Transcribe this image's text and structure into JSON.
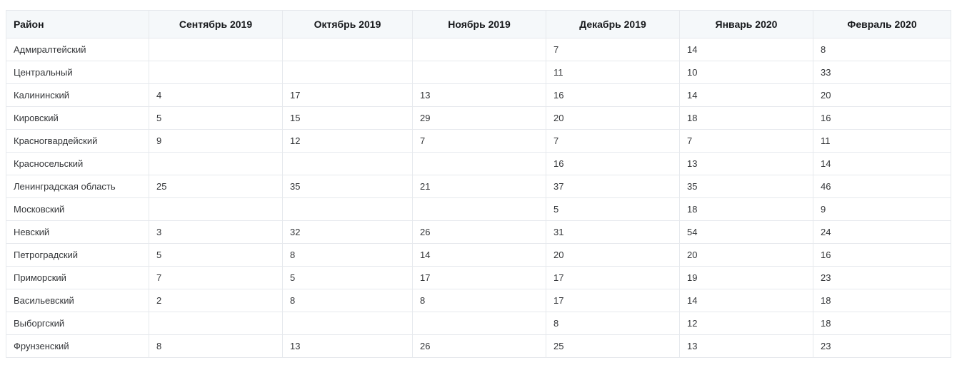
{
  "colors": {
    "header_background": "#f5f8fa",
    "border": "#e6e9ed",
    "header_text": "#17191c",
    "cell_text": "#333538",
    "page_background": "#ffffff"
  },
  "table": {
    "columns": [
      "Район",
      "Сентябрь 2019",
      "Октябрь 2019",
      "Ноябрь 2019",
      "Декабрь 2019",
      "Январь 2020",
      "Февраль 2020"
    ],
    "rows": [
      {
        "district": "Адмиралтейский",
        "values": [
          "",
          "",
          "",
          "7",
          "14",
          "8"
        ]
      },
      {
        "district": "Центральный",
        "values": [
          "",
          "",
          "",
          "11",
          "10",
          "33"
        ]
      },
      {
        "district": "Калининский",
        "values": [
          "4",
          "17",
          "13",
          "16",
          "14",
          "20"
        ]
      },
      {
        "district": "Кировский",
        "values": [
          "5",
          "15",
          "29",
          "20",
          "18",
          "16"
        ]
      },
      {
        "district": "Красногвардейский",
        "values": [
          "9",
          "12",
          "7",
          "7",
          "7",
          "11"
        ]
      },
      {
        "district": "Красносельский",
        "values": [
          "",
          "",
          "",
          "16",
          "13",
          "14"
        ]
      },
      {
        "district": "Ленинградская область",
        "values": [
          "25",
          "35",
          "21",
          "37",
          "35",
          "46"
        ]
      },
      {
        "district": "Московский",
        "values": [
          "",
          "",
          "",
          "5",
          "18",
          "9"
        ]
      },
      {
        "district": "Невский",
        "values": [
          "3",
          "32",
          "26",
          "31",
          "54",
          "24"
        ]
      },
      {
        "district": "Петроградский",
        "values": [
          "5",
          "8",
          "14",
          "20",
          "20",
          "16"
        ]
      },
      {
        "district": "Приморский",
        "values": [
          "7",
          "5",
          "17",
          "17",
          "19",
          "23"
        ]
      },
      {
        "district": "Васильевский",
        "values": [
          "2",
          "8",
          "8",
          "17",
          "14",
          "18"
        ]
      },
      {
        "district": "Выборгский",
        "values": [
          "",
          "",
          "",
          "8",
          "12",
          "18"
        ]
      },
      {
        "district": "Фрунзенский",
        "values": [
          "8",
          "13",
          "26",
          "25",
          "13",
          "23"
        ]
      }
    ]
  },
  "chart_data": {
    "type": "table",
    "title": "",
    "columns": [
      "Район",
      "Сентябрь 2019",
      "Октябрь 2019",
      "Ноябрь 2019",
      "Декабрь 2019",
      "Январь 2020",
      "Февраль 2020"
    ],
    "rows": [
      [
        "Адмиралтейский",
        null,
        null,
        null,
        7,
        14,
        8
      ],
      [
        "Центральный",
        null,
        null,
        null,
        11,
        10,
        33
      ],
      [
        "Калининский",
        4,
        17,
        13,
        16,
        14,
        20
      ],
      [
        "Кировский",
        5,
        15,
        29,
        20,
        18,
        16
      ],
      [
        "Красногвардейский",
        9,
        12,
        7,
        7,
        7,
        11
      ],
      [
        "Красносельский",
        null,
        null,
        null,
        16,
        13,
        14
      ],
      [
        "Ленинградская область",
        25,
        35,
        21,
        37,
        35,
        46
      ],
      [
        "Московский",
        null,
        null,
        null,
        5,
        18,
        9
      ],
      [
        "Невский",
        3,
        32,
        26,
        31,
        54,
        24
      ],
      [
        "Петроградский",
        5,
        8,
        14,
        20,
        20,
        16
      ],
      [
        "Приморский",
        7,
        5,
        17,
        17,
        19,
        23
      ],
      [
        "Васильевский",
        2,
        8,
        8,
        17,
        14,
        18
      ],
      [
        "Выборгский",
        null,
        null,
        null,
        8,
        12,
        18
      ],
      [
        "Фрунзенский",
        8,
        13,
        26,
        25,
        13,
        23
      ]
    ]
  }
}
